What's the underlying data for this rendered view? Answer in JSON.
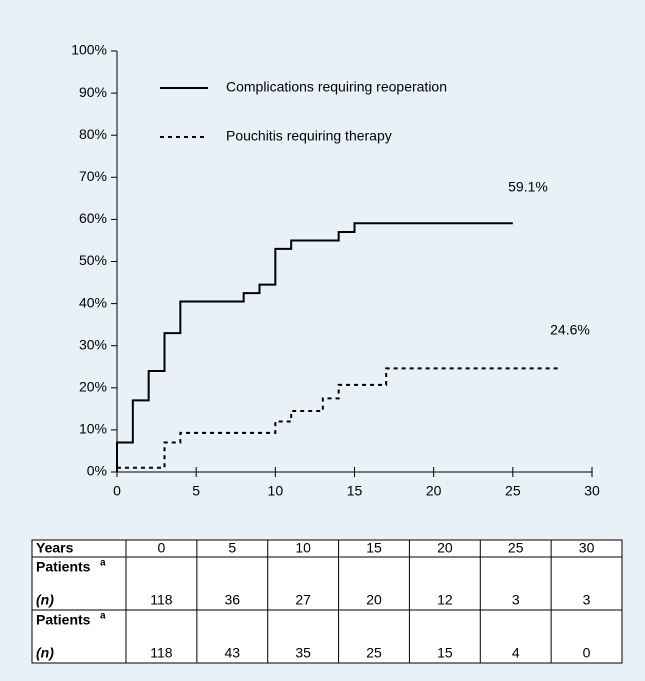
{
  "chart_data": {
    "type": "step",
    "annotations": [
      "59.1%",
      "24.6%"
    ],
    "series": [
      {
        "name": "Complications requiring reoperation",
        "color": "#000000",
        "dash": "solid",
        "x": [
          0,
          0,
          1,
          2,
          3,
          4,
          8,
          9,
          10,
          11,
          14,
          15,
          25
        ],
        "values": [
          0,
          7,
          17,
          24,
          33,
          40.5,
          42.5,
          44.5,
          53,
          55,
          57,
          59.1,
          59.1
        ]
      },
      {
        "name": "Pouchitis requiring therapy",
        "color": "#000000",
        "dash": "dashed",
        "x": [
          0,
          3,
          4,
          10,
          11,
          13,
          14,
          17,
          28
        ],
        "values": [
          1,
          7,
          9.3,
          12,
          14.5,
          17.5,
          20.7,
          24.6,
          24.6
        ]
      }
    ],
    "xlim": [
      0,
      30
    ],
    "xticks": [
      0,
      5,
      10,
      15,
      20,
      25,
      30
    ],
    "ylim": [
      0,
      100
    ],
    "yticks": [
      {
        "value": 0,
        "label": "0%"
      },
      {
        "value": 10,
        "label": "10%"
      },
      {
        "value": 20,
        "label": "20%"
      },
      {
        "value": 30,
        "label": "30%"
      },
      {
        "value": 40,
        "label": "40%"
      },
      {
        "value": 50,
        "label": "50%"
      },
      {
        "value": 60,
        "label": "60%"
      },
      {
        "value": 70,
        "label": "70%"
      },
      {
        "value": 80,
        "label": "80%"
      },
      {
        "value": 90,
        "label": "90%"
      },
      {
        "value": 100,
        "label": "100%"
      }
    ],
    "grid": false
  },
  "table": {
    "header": [
      "Years",
      0,
      5,
      10,
      15,
      20,
      25,
      30
    ],
    "rows": [
      {
        "label": "Patients",
        "sup": "a",
        "unit": "(n)",
        "values": [
          118,
          36,
          27,
          20,
          12,
          3,
          3
        ]
      },
      {
        "label": "Patients",
        "sup": "a",
        "unit": "(n)",
        "values": [
          118,
          43,
          35,
          25,
          15,
          4,
          0
        ]
      }
    ]
  }
}
